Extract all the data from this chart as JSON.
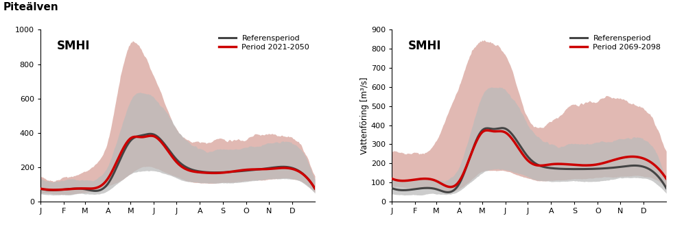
{
  "title": "Piteälven",
  "months": [
    "J",
    "F",
    "M",
    "A",
    "M",
    "J",
    "J",
    "A",
    "S",
    "O",
    "N",
    "D"
  ],
  "ylabel": "Vattenföring [m³/s]",
  "plot1": {
    "legend_period": "Period 2021-2050",
    "ylim": [
      0,
      1000
    ],
    "yticks": [
      0,
      200,
      400,
      600,
      800,
      1000
    ],
    "ref_line_ctrl": [
      0,
      75,
      31,
      70,
      59,
      72,
      90,
      105,
      120,
      355,
      135,
      385,
      151,
      390,
      181,
      245,
      212,
      175,
      243,
      170,
      274,
      180,
      305,
      195,
      335,
      195,
      365,
      75
    ],
    "fut_line_ctrl": [
      0,
      75,
      31,
      70,
      59,
      76,
      90,
      135,
      120,
      368,
      135,
      375,
      151,
      380,
      181,
      230,
      212,
      170,
      243,
      168,
      274,
      185,
      305,
      190,
      335,
      190,
      365,
      76
    ],
    "ref_band_low_ctrl": [
      0,
      45,
      31,
      40,
      59,
      43,
      90,
      65,
      120,
      160,
      135,
      175,
      151,
      180,
      181,
      135,
      212,
      110,
      243,
      108,
      274,
      118,
      305,
      128,
      335,
      128,
      365,
      45
    ],
    "ref_band_high_ctrl": [
      0,
      130,
      31,
      118,
      59,
      128,
      90,
      210,
      120,
      590,
      135,
      635,
      151,
      600,
      181,
      420,
      212,
      305,
      243,
      300,
      274,
      320,
      305,
      340,
      335,
      338,
      365,
      130
    ],
    "fut_band_low_ctrl": [
      0,
      50,
      31,
      44,
      59,
      52,
      90,
      90,
      120,
      160,
      135,
      200,
      151,
      195,
      181,
      140,
      212,
      110,
      243,
      110,
      274,
      120,
      305,
      130,
      335,
      130,
      365,
      52
    ],
    "fut_band_high_ctrl": [
      0,
      155,
      31,
      140,
      59,
      175,
      90,
      370,
      120,
      930,
      135,
      870,
      151,
      720,
      181,
      420,
      212,
      340,
      243,
      350,
      274,
      370,
      305,
      385,
      335,
      375,
      365,
      155
    ]
  },
  "plot2": {
    "legend_period": "Period 2069-2098",
    "ylim": [
      0,
      900
    ],
    "yticks": [
      0,
      100,
      200,
      300,
      400,
      500,
      600,
      700,
      800,
      900
    ],
    "ref_line_ctrl": [
      0,
      70,
      31,
      65,
      59,
      65,
      90,
      95,
      120,
      372,
      135,
      380,
      151,
      382,
      181,
      235,
      212,
      175,
      243,
      170,
      274,
      172,
      305,
      182,
      335,
      182,
      365,
      70
    ],
    "fut_line_ctrl": [
      0,
      120,
      31,
      115,
      59,
      108,
      90,
      108,
      120,
      362,
      135,
      368,
      151,
      362,
      181,
      215,
      212,
      195,
      243,
      192,
      274,
      195,
      305,
      228,
      335,
      225,
      365,
      120
    ],
    "ref_band_low_ctrl": [
      0,
      40,
      31,
      36,
      59,
      38,
      90,
      58,
      120,
      148,
      135,
      168,
      151,
      168,
      181,
      128,
      212,
      105,
      243,
      108,
      274,
      108,
      305,
      120,
      335,
      120,
      365,
      40
    ],
    "ref_band_high_ctrl": [
      0,
      118,
      31,
      112,
      59,
      118,
      90,
      185,
      120,
      555,
      135,
      600,
      151,
      580,
      181,
      400,
      212,
      298,
      243,
      298,
      274,
      315,
      305,
      328,
      335,
      325,
      365,
      118
    ],
    "fut_band_low_ctrl": [
      0,
      78,
      31,
      72,
      59,
      60,
      90,
      68,
      120,
      155,
      135,
      162,
      151,
      158,
      181,
      118,
      212,
      112,
      243,
      118,
      274,
      125,
      305,
      132,
      335,
      130,
      365,
      78
    ],
    "fut_band_high_ctrl": [
      0,
      270,
      31,
      255,
      59,
      318,
      90,
      620,
      120,
      850,
      135,
      820,
      151,
      760,
      181,
      435,
      212,
      415,
      243,
      495,
      274,
      535,
      305,
      530,
      335,
      490,
      365,
      270
    ]
  },
  "ref_color": "#444444",
  "fut_color": "#cc0000",
  "ref_band_color": "#bbbbbb",
  "fut_band_color": "#daa8a0",
  "ref_band_alpha": 0.75,
  "fut_band_alpha": 0.8,
  "line_width": 2.2,
  "smhi_fontsize": 12,
  "title_fontsize": 11,
  "legend_fontsize": 8,
  "tick_fontsize": 8,
  "noise_seed": 42
}
